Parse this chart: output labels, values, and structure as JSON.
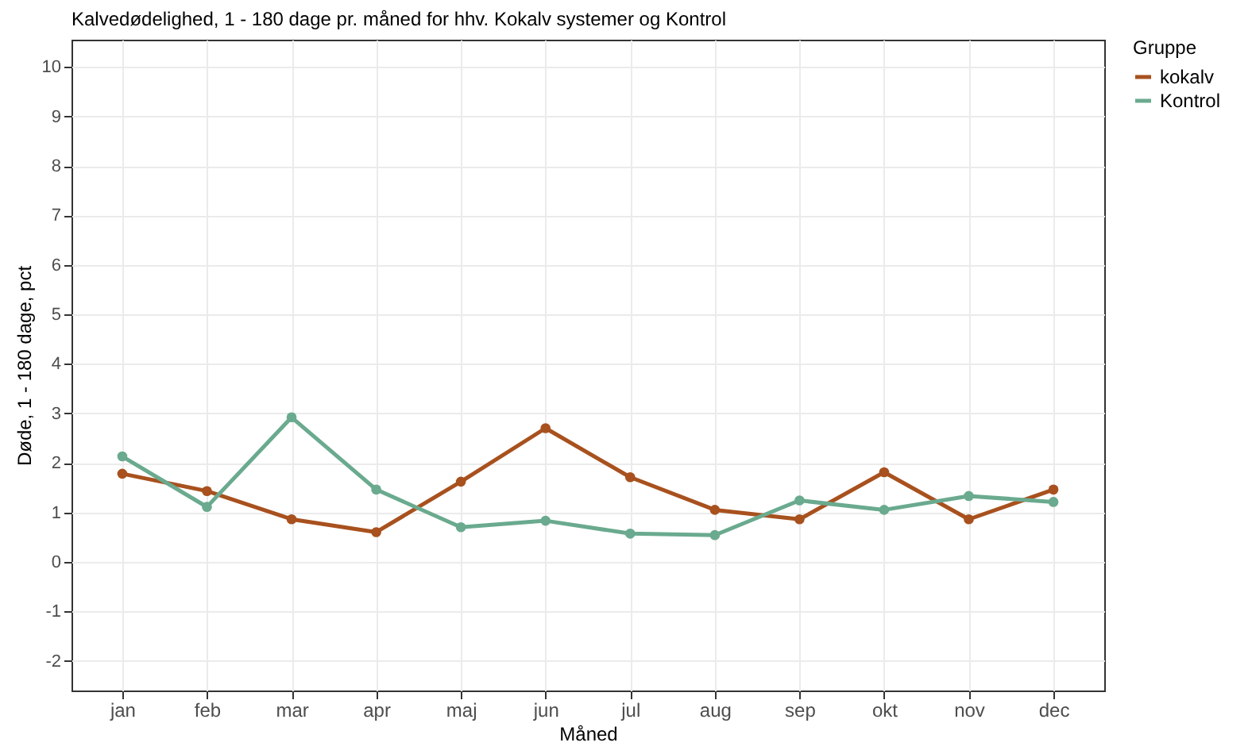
{
  "chart_data": {
    "type": "line",
    "title": "Kalvedødelighed, 1 - 180 dage pr. måned for hhv. Kokalv systemer og Kontrol",
    "xlabel": "Måned",
    "ylabel": "Døde, 1 - 180 dage, pct",
    "legend_title": "Gruppe",
    "categories": [
      "jan",
      "feb",
      "mar",
      "apr",
      "maj",
      "jun",
      "jul",
      "aug",
      "sep",
      "okt",
      "nov",
      "dec"
    ],
    "series": [
      {
        "name": "kokalv",
        "color": "#a8511e",
        "values": [
          1.78,
          1.43,
          0.86,
          0.6,
          1.62,
          2.7,
          1.71,
          1.05,
          0.86,
          1.81,
          0.86,
          1.46
        ]
      },
      {
        "name": "Kontrol",
        "color": "#6aaa8f",
        "values": [
          2.13,
          1.11,
          2.92,
          1.46,
          0.7,
          0.83,
          0.57,
          0.54,
          1.24,
          1.05,
          1.33,
          1.21
        ]
      }
    ],
    "ylim": [
      -2.6,
      10.55
    ],
    "yticks": [
      -2,
      -1,
      0,
      1,
      2,
      3,
      4,
      5,
      6,
      7,
      8,
      9,
      10
    ],
    "grid": true,
    "legend": "right",
    "marker": "circle",
    "line_style": "solid"
  }
}
